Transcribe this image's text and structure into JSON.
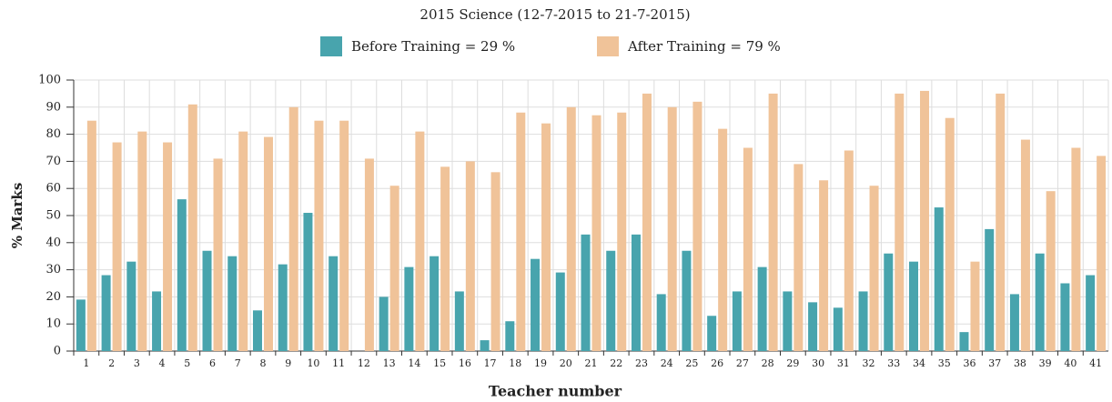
{
  "chart_data": {
    "type": "bar",
    "title": "2015 Science (12-7-2015 to 21-7-2015)",
    "x_label": "Teacher number",
    "y_label": "% Marks",
    "categories": [
      "1",
      "2",
      "3",
      "4",
      "5",
      "6",
      "7",
      "8",
      "9",
      "10",
      "11",
      "12",
      "13",
      "14",
      "15",
      "16",
      "17",
      "18",
      "19",
      "20",
      "21",
      "22",
      "23",
      "24",
      "25",
      "26",
      "27",
      "28",
      "29",
      "30",
      "31",
      "32",
      "33",
      "34",
      "35",
      "36",
      "37",
      "38",
      "39",
      "40",
      "41"
    ],
    "series": [
      {
        "name": "Before Training = 29 %",
        "color": "#48a4ad",
        "values": [
          19,
          28,
          33,
          22,
          56,
          37,
          35,
          15,
          32,
          51,
          35,
          0,
          20,
          31,
          35,
          22,
          4,
          11,
          34,
          29,
          43,
          37,
          43,
          21,
          37,
          13,
          22,
          31,
          22,
          18,
          16,
          22,
          36,
          33,
          53,
          7,
          45,
          21,
          36,
          25,
          28
        ]
      },
      {
        "name": "After Training = 79 %",
        "color": "#f0c399",
        "values": [
          85,
          77,
          81,
          77,
          91,
          71,
          81,
          79,
          90,
          85,
          85,
          71,
          61,
          81,
          68,
          70,
          66,
          88,
          84,
          90,
          87,
          88,
          95,
          90,
          92,
          82,
          75,
          95,
          69,
          63,
          74,
          61,
          95,
          96,
          86,
          33,
          95,
          78,
          59,
          75,
          72
        ]
      }
    ],
    "ylim": [
      0,
      100
    ],
    "yticks": [
      0,
      10,
      20,
      30,
      40,
      50,
      60,
      70,
      80,
      90,
      100
    ],
    "grid": true,
    "legend": "top"
  }
}
